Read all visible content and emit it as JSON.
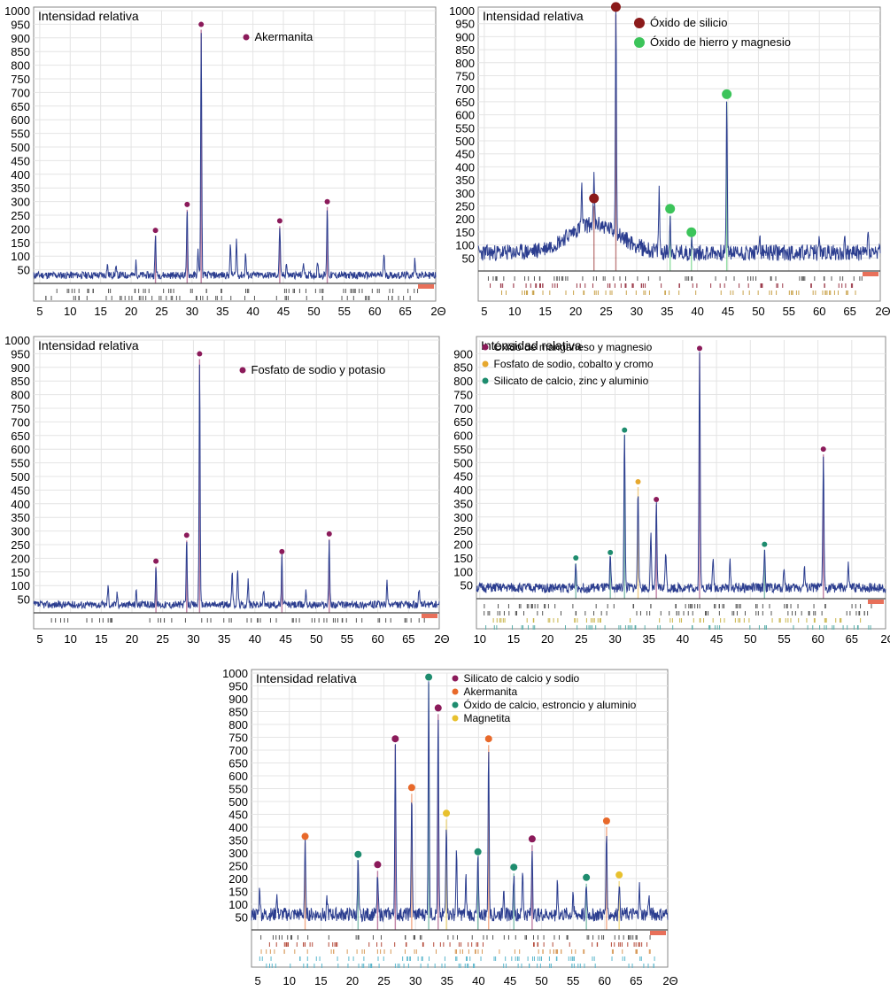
{
  "chart_data": [
    {
      "type": "line",
      "title": "Intensidad relativa",
      "xlabel": "2Θ",
      "ylabel": "Intensidad relativa",
      "xlim": [
        4,
        70
      ],
      "ylim": [
        0,
        1000
      ],
      "x_ticks": [
        5,
        10,
        15,
        20,
        25,
        30,
        35,
        40,
        45,
        50,
        55,
        60,
        65
      ],
      "y_ticks": [
        50,
        100,
        150,
        200,
        250,
        300,
        350,
        400,
        450,
        500,
        550,
        600,
        650,
        700,
        750,
        800,
        850,
        900,
        950,
        1000
      ],
      "grid": true,
      "legend_position": "top-center",
      "baseline": 30,
      "legend": [
        {
          "name": "Akermanita",
          "color": "#8B1A5A"
        }
      ],
      "peaks": [
        {
          "x": 24.0,
          "y": 175,
          "series": 0
        },
        {
          "x": 29.2,
          "y": 270,
          "series": 0
        },
        {
          "x": 31.5,
          "y": 930,
          "series": 0
        },
        {
          "x": 44.4,
          "y": 210,
          "series": 0
        },
        {
          "x": 52.2,
          "y": 280,
          "series": 0
        }
      ],
      "minor_peaks": [
        {
          "x": 16.1,
          "y": 70
        },
        {
          "x": 17.5,
          "y": 60
        },
        {
          "x": 20.8,
          "y": 75
        },
        {
          "x": 31.0,
          "y": 120
        },
        {
          "x": 36.3,
          "y": 140
        },
        {
          "x": 37.3,
          "y": 160
        },
        {
          "x": 38.8,
          "y": 110
        },
        {
          "x": 45.5,
          "y": 75
        },
        {
          "x": 48.3,
          "y": 80
        },
        {
          "x": 50.6,
          "y": 85
        },
        {
          "x": 61.5,
          "y": 110
        },
        {
          "x": 66.6,
          "y": 90
        }
      ],
      "tick_rows": [
        "#555555",
        "#555555"
      ],
      "noise_seed": 11
    },
    {
      "type": "line",
      "title": "Intensidad relativa",
      "xlabel": "2Θ",
      "ylabel": "Intensidad relativa",
      "xlim": [
        4,
        70
      ],
      "ylim": [
        0,
        1000
      ],
      "x_ticks": [
        5,
        10,
        15,
        20,
        25,
        30,
        35,
        40,
        45,
        50,
        55,
        60,
        65
      ],
      "y_ticks": [
        50,
        100,
        150,
        200,
        250,
        300,
        350,
        400,
        450,
        500,
        550,
        600,
        650,
        700,
        750,
        800,
        850,
        900,
        950,
        1000
      ],
      "grid": true,
      "legend_position": "top-center",
      "baseline": 70,
      "hump": {
        "center": 23,
        "width": 6,
        "height": 110
      },
      "legend": [
        {
          "name": "Óxido de silicio",
          "color": "#8B1A1A"
        },
        {
          "name": "Óxido de hierro y magnesio",
          "color": "#3CC45A"
        }
      ],
      "peaks": [
        {
          "x": 23.0,
          "y": 250,
          "series": 0
        },
        {
          "x": 26.6,
          "y": 985,
          "series": 0
        },
        {
          "x": 35.5,
          "y": 210,
          "series": 1
        },
        {
          "x": 39.0,
          "y": 120,
          "series": 1
        },
        {
          "x": 44.8,
          "y": 650,
          "series": 1
        }
      ],
      "minor_peaks": [
        {
          "x": 21.0,
          "y": 230
        },
        {
          "x": 33.7,
          "y": 310
        },
        {
          "x": 50.2,
          "y": 150
        },
        {
          "x": 60.0,
          "y": 135
        },
        {
          "x": 64.2,
          "y": 125
        },
        {
          "x": 68.0,
          "y": 150
        }
      ],
      "tick_rows": [
        "#555555",
        "#9B3A4A",
        "#C9A24A"
      ],
      "noise_seed": 23
    },
    {
      "type": "line",
      "title": "Intensidad relativa",
      "xlabel": "2Θ",
      "ylabel": "Intensidad relativa",
      "xlim": [
        4,
        70
      ],
      "ylim": [
        0,
        1000
      ],
      "x_ticks": [
        5,
        10,
        15,
        20,
        25,
        30,
        35,
        40,
        45,
        50,
        55,
        60,
        65
      ],
      "y_ticks": [
        50,
        100,
        150,
        200,
        250,
        300,
        350,
        400,
        450,
        500,
        550,
        600,
        650,
        700,
        750,
        800,
        850,
        900,
        950,
        1000
      ],
      "grid": true,
      "legend_position": "top-center",
      "baseline": 30,
      "legend": [
        {
          "name": "Fosfato de sodio y potasio",
          "color": "#8B1A5A"
        }
      ],
      "peaks": [
        {
          "x": 23.9,
          "y": 170,
          "series": 0
        },
        {
          "x": 28.9,
          "y": 265,
          "series": 0
        },
        {
          "x": 31.0,
          "y": 930,
          "series": 0
        },
        {
          "x": 44.4,
          "y": 205,
          "series": 0
        },
        {
          "x": 52.1,
          "y": 270,
          "series": 0
        }
      ],
      "minor_peaks": [
        {
          "x": 16.1,
          "y": 100
        },
        {
          "x": 17.6,
          "y": 70
        },
        {
          "x": 20.7,
          "y": 80
        },
        {
          "x": 36.3,
          "y": 155
        },
        {
          "x": 37.2,
          "y": 165
        },
        {
          "x": 38.9,
          "y": 120
        },
        {
          "x": 41.4,
          "y": 85
        },
        {
          "x": 48.3,
          "y": 85
        },
        {
          "x": 61.5,
          "y": 110
        },
        {
          "x": 66.7,
          "y": 90
        }
      ],
      "tick_rows": [
        "#555555"
      ],
      "noise_seed": 37
    },
    {
      "type": "line",
      "title": "Intensidad relativa",
      "xlabel": "2Θ",
      "ylabel": "Intensidad relativa",
      "xlim": [
        9.5,
        70
      ],
      "ylim": [
        0,
        950
      ],
      "x_ticks": [
        10,
        15,
        20,
        25,
        30,
        35,
        40,
        45,
        50,
        55,
        60,
        65
      ],
      "y_ticks": [
        50,
        100,
        150,
        200,
        250,
        300,
        350,
        400,
        450,
        500,
        550,
        600,
        650,
        700,
        750,
        800,
        850,
        900
      ],
      "grid": true,
      "legend_position": "top-left",
      "baseline": 40,
      "legend": [
        {
          "name": "Óxido de manganeso y magnesio",
          "color": "#8B1A5A"
        },
        {
          "name": "Fosfato de sodio, cobalto y cromo",
          "color": "#E6A82E"
        },
        {
          "name": "Silicato de calcio, zinc y aluminio",
          "color": "#1E8C6E"
        }
      ],
      "peaks": [
        {
          "x": 24.2,
          "y": 130,
          "series": 2
        },
        {
          "x": 29.3,
          "y": 150,
          "series": 2
        },
        {
          "x": 31.4,
          "y": 600,
          "series": 2
        },
        {
          "x": 33.4,
          "y": 410,
          "series": 1
        },
        {
          "x": 36.1,
          "y": 345,
          "series": 0
        },
        {
          "x": 42.5,
          "y": 900,
          "series": 0
        },
        {
          "x": 52.1,
          "y": 180,
          "series": 2
        },
        {
          "x": 60.8,
          "y": 530,
          "series": 0
        }
      ],
      "minor_peaks": [
        {
          "x": 35.3,
          "y": 230
        },
        {
          "x": 37.5,
          "y": 180
        },
        {
          "x": 44.5,
          "y": 140
        },
        {
          "x": 47.0,
          "y": 130
        },
        {
          "x": 55.0,
          "y": 120
        },
        {
          "x": 58.0,
          "y": 110
        },
        {
          "x": 64.5,
          "y": 120
        }
      ],
      "tick_rows": [
        "#555555",
        "#555555",
        "#C9B44A",
        "#5AAEAA"
      ],
      "noise_seed": 51
    },
    {
      "type": "line",
      "title": "Intensidad relativa",
      "xlabel": "2Θ",
      "ylabel": "Intensidad relativa",
      "xlim": [
        4,
        70
      ],
      "ylim": [
        0,
        1000
      ],
      "x_ticks": [
        5,
        10,
        15,
        20,
        25,
        30,
        35,
        40,
        45,
        50,
        55,
        60,
        65
      ],
      "y_ticks": [
        50,
        100,
        150,
        200,
        250,
        300,
        350,
        400,
        450,
        500,
        550,
        600,
        650,
        700,
        750,
        800,
        850,
        900,
        950,
        1000
      ],
      "grid": true,
      "legend_position": "top-center",
      "baseline": 60,
      "legend": [
        {
          "name": "Silicato de calcio y sodio",
          "color": "#8B1A5A"
        },
        {
          "name": "Akermanita",
          "color": "#E8692A"
        },
        {
          "name": "Óxido de calcio, estroncio y aluminio",
          "color": "#1E8C6E"
        },
        {
          "name": "Magnetita",
          "color": "#E8C12E"
        }
      ],
      "peaks": [
        {
          "x": 12.5,
          "y": 340,
          "series": 1
        },
        {
          "x": 20.9,
          "y": 270,
          "series": 2
        },
        {
          "x": 24.0,
          "y": 230,
          "series": 0
        },
        {
          "x": 26.8,
          "y": 720,
          "series": 0
        },
        {
          "x": 29.4,
          "y": 530,
          "series": 1
        },
        {
          "x": 32.1,
          "y": 960,
          "series": 2
        },
        {
          "x": 33.6,
          "y": 840,
          "series": 0
        },
        {
          "x": 34.9,
          "y": 430,
          "series": 3
        },
        {
          "x": 39.9,
          "y": 280,
          "series": 2
        },
        {
          "x": 41.6,
          "y": 720,
          "series": 1
        },
        {
          "x": 45.6,
          "y": 220,
          "series": 2
        },
        {
          "x": 48.5,
          "y": 330,
          "series": 0
        },
        {
          "x": 57.1,
          "y": 180,
          "series": 2
        },
        {
          "x": 60.3,
          "y": 400,
          "series": 1
        },
        {
          "x": 62.3,
          "y": 190,
          "series": 3
        }
      ],
      "minor_peaks": [
        {
          "x": 5.3,
          "y": 170
        },
        {
          "x": 8.0,
          "y": 140
        },
        {
          "x": 16.0,
          "y": 120
        },
        {
          "x": 36.5,
          "y": 300
        },
        {
          "x": 38.0,
          "y": 200
        },
        {
          "x": 44.0,
          "y": 180
        },
        {
          "x": 47.0,
          "y": 240
        },
        {
          "x": 52.5,
          "y": 200
        },
        {
          "x": 55.0,
          "y": 150
        },
        {
          "x": 65.5,
          "y": 170
        },
        {
          "x": 67.0,
          "y": 140
        }
      ],
      "tick_rows": [
        "#555555",
        "#B44A3A",
        "#D89A5A",
        "#5AB6CC",
        "#5AB6CC"
      ],
      "noise_seed": 77
    }
  ]
}
